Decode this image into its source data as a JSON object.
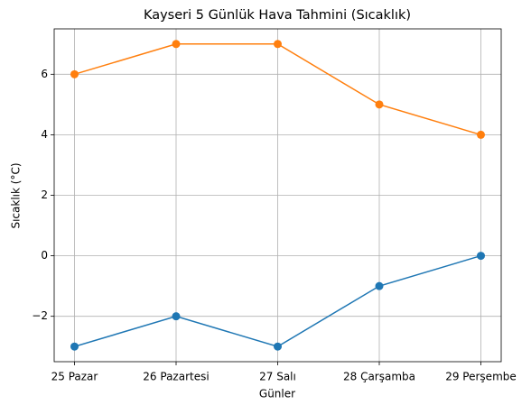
{
  "chart_data": {
    "type": "line",
    "title": "Kayseri 5 Günlük Hava Tahmini (Sıcaklık)",
    "x_label": "Günler",
    "y_label": "Sıcaklık (°C)",
    "categories": [
      "25 Pazar",
      "26 Pazartesi",
      "27 Salı",
      "28 Çarşamba",
      "29 Perşembe"
    ],
    "series": [
      {
        "color": "#ff7f0e",
        "values": [
          6,
          7,
          7,
          5,
          4
        ]
      },
      {
        "color": "#1f77b4",
        "values": [
          -3,
          -2,
          -3,
          -1,
          0
        ]
      }
    ],
    "ylim": [
      -3.5,
      7.5
    ],
    "yticks": [
      {
        "value": -2,
        "label": "−2"
      },
      0,
      2,
      4,
      6
    ],
    "grid": true
  }
}
